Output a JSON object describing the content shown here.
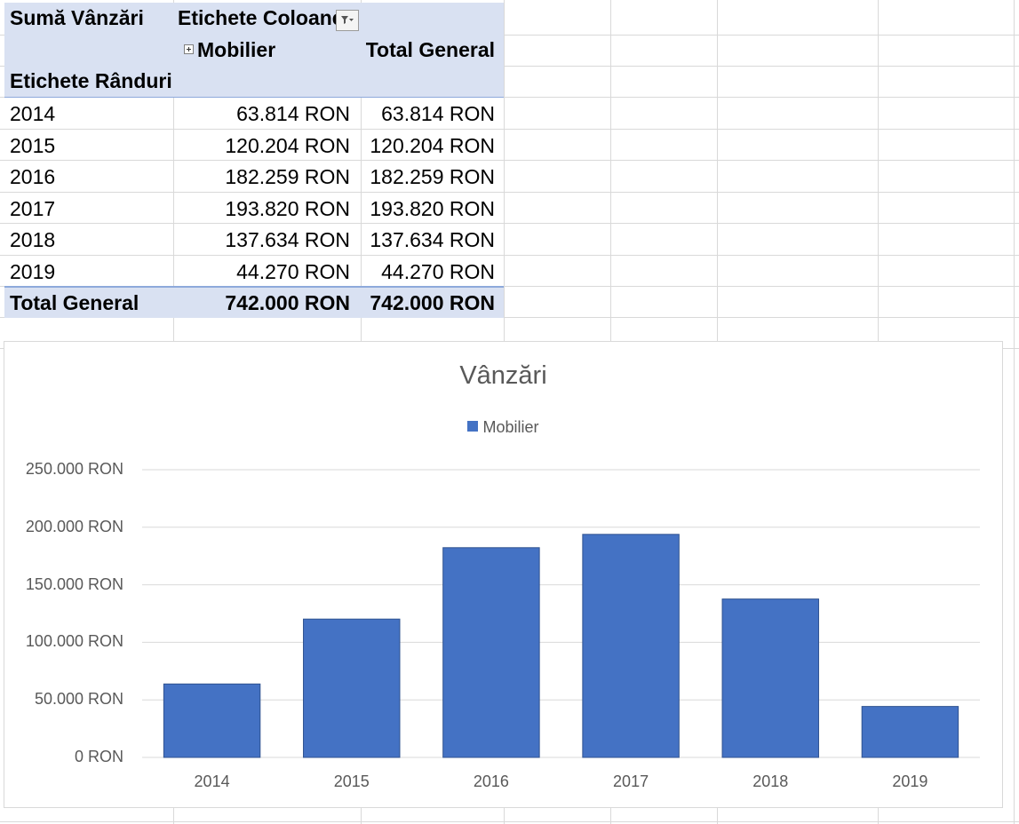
{
  "pivot": {
    "value_header": "Sumă Vânzări",
    "column_labels_header": "Etichete Coloane",
    "column_name": "Mobilier",
    "grand_total_header": "Total General",
    "row_labels_header": "Etichete Rânduri",
    "rows": [
      {
        "label": "2014",
        "mobilier": "63.814 RON",
        "total": "63.814 RON"
      },
      {
        "label": "2015",
        "mobilier": "120.204 RON",
        "total": "120.204 RON"
      },
      {
        "label": "2016",
        "mobilier": "182.259 RON",
        "total": "182.259 RON"
      },
      {
        "label": "2017",
        "mobilier": "193.820 RON",
        "total": "193.820 RON"
      },
      {
        "label": "2018",
        "mobilier": "137.634 RON",
        "total": "137.634 RON"
      },
      {
        "label": "2019",
        "mobilier": "44.270 RON",
        "total": "44.270 RON"
      }
    ],
    "grand_total": {
      "label": "Total General",
      "mobilier": "742.000 RON",
      "total": "742.000 RON"
    },
    "header_color": "#d9e1f2",
    "filter_icon": "filter-dropdown-icon",
    "expand_icon": "expand-plus-icon"
  },
  "chart_data": {
    "type": "bar",
    "title": "Vânzări",
    "categories": [
      "2014",
      "2015",
      "2016",
      "2017",
      "2018",
      "2019"
    ],
    "series": [
      {
        "name": "Mobilier",
        "values": [
          63814,
          120204,
          182259,
          193820,
          137634,
          44270
        ],
        "color": "#4472c4"
      }
    ],
    "ylim": [
      0,
      250000
    ],
    "yticks": [
      {
        "value": 0,
        "label": "0 RON"
      },
      {
        "value": 50000,
        "label": "50.000 RON"
      },
      {
        "value": 100000,
        "label": "100.000 RON"
      },
      {
        "value": 150000,
        "label": "150.000 RON"
      },
      {
        "value": 200000,
        "label": "200.000 RON"
      },
      {
        "value": 250000,
        "label": "250.000 RON"
      }
    ],
    "xlabel": "",
    "ylabel": "",
    "legend": "top",
    "grid": true
  }
}
